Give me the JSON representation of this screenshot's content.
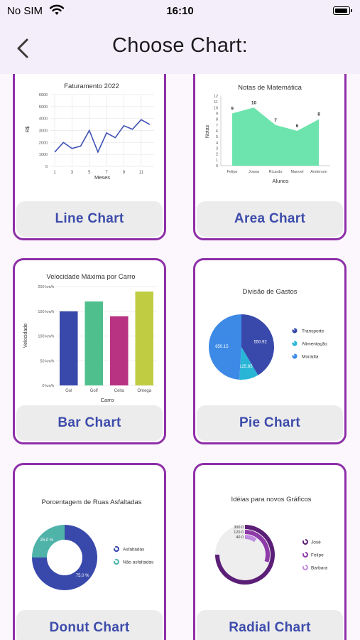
{
  "status_bar": {
    "carrier": "No SIM",
    "time": "16:10"
  },
  "header": {
    "title": "Choose Chart:"
  },
  "colors": {
    "accent_border": "#8e2fa8",
    "label_text": "#3d4cab",
    "label_bg": "#ececec",
    "line": "#3f51b5",
    "area": "#6de4ad",
    "bars": [
      "#3949ab",
      "#4fc08d",
      "#b83382",
      "#c0cd42"
    ],
    "pie": [
      "#3949ab",
      "#29b6d6",
      "#3d8ae6"
    ],
    "donut": [
      "#3949ab",
      "#4fb3a9"
    ],
    "radial": [
      "#eeeeee",
      "#c08be0",
      "#8e3aa8",
      "#5c1f78"
    ]
  },
  "cards": [
    {
      "label": "Line Chart",
      "chart_data": {
        "type": "line",
        "title": "Faturamento 2022",
        "xlabel": "Meses",
        "ylabel": "R$",
        "x": [
          1,
          2,
          3,
          4,
          5,
          6,
          7,
          8,
          9,
          10,
          11,
          12
        ],
        "values": [
          1200,
          2000,
          1500,
          1700,
          3000,
          1200,
          2800,
          2400,
          3400,
          3100,
          3900,
          3500
        ],
        "x_ticks": [
          "1",
          "3",
          "5",
          "7",
          "9",
          "11"
        ],
        "y_ticks": [
          "0",
          "1000",
          "2000",
          "3000",
          "4000",
          "5000",
          "6000"
        ],
        "ylim": [
          0,
          6000
        ],
        "grid": true
      }
    },
    {
      "label": "Area Chart",
      "chart_data": {
        "type": "area",
        "title": "Notas de Matemática",
        "xlabel": "Alunos",
        "ylabel": "Notas",
        "categories": [
          "Felipe",
          "Joana",
          "Ricardo",
          "Manoel",
          "Anderson"
        ],
        "values": [
          9,
          10,
          7,
          6,
          8
        ],
        "y_ticks": [
          "0",
          "1",
          "2",
          "3",
          "4",
          "5",
          "6",
          "7",
          "8",
          "9",
          "10",
          "11",
          "12"
        ],
        "ylim": [
          0,
          12
        ],
        "data_labels": true
      }
    },
    {
      "label": "Bar Chart",
      "chart_data": {
        "type": "bar",
        "title": "Velocidade Máxima por Carro",
        "xlabel": "Carro",
        "ylabel": "Velocidade",
        "categories": [
          "Gol",
          "Golf",
          "Celta",
          "Omega"
        ],
        "values": [
          150,
          170,
          140,
          190
        ],
        "y_ticks": [
          "0 km/h",
          "50 km/h",
          "100 km/h",
          "150 km/h",
          "200 km/h"
        ],
        "ylim": [
          0,
          200
        ],
        "grid": true
      }
    },
    {
      "label": "Pie Chart",
      "chart_data": {
        "type": "pie",
        "title": "Divisão de Gastos",
        "slices": [
          {
            "name": "Transporte",
            "value": 550.92,
            "label": "550.92"
          },
          {
            "name": "Alimentação",
            "value": 125.85,
            "label": "125.85"
          },
          {
            "name": "Moradia",
            "value": 650.15,
            "label": "650.15"
          }
        ],
        "legend": "right"
      }
    },
    {
      "label": "Donut Chart",
      "chart_data": {
        "type": "pie",
        "title": "Porcentagem de Ruas Asfaltadas",
        "slices": [
          {
            "name": "Asfaltadas",
            "value": 75,
            "label": "75.0 %"
          },
          {
            "name": "Não asfaltadas",
            "value": 25,
            "label": "25.0 %"
          }
        ],
        "legend": "right"
      }
    },
    {
      "label": "Radial Chart",
      "chart_data": {
        "type": "radial",
        "title": "Idéias para novos Gráficos",
        "series": [
          {
            "name": "José",
            "value": 300,
            "label": "300.0"
          },
          {
            "name": "Felipe",
            "value": 120,
            "label": "120.0"
          },
          {
            "name": "Barbara",
            "value": 40,
            "label": "40.0"
          }
        ],
        "legend": "right"
      }
    }
  ]
}
